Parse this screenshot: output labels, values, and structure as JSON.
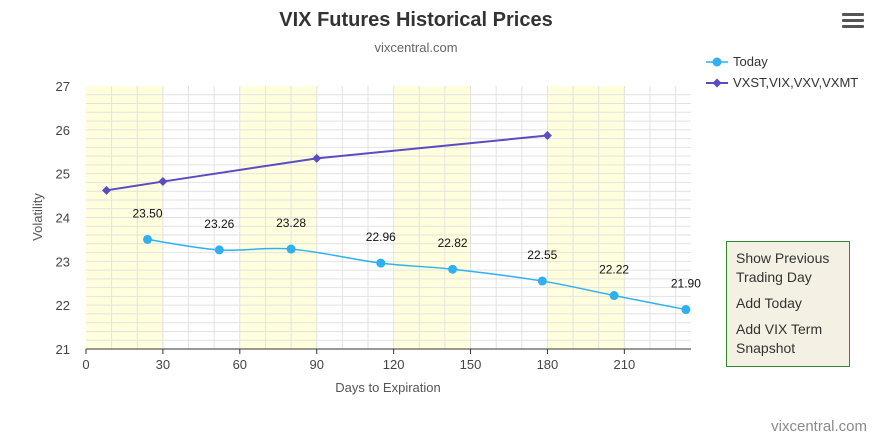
{
  "chart_data": {
    "type": "line",
    "title": "VIX Futures Historical Prices",
    "subtitle": "vixcentral.com",
    "xlabel": "Days to Expiration",
    "ylabel": "Volatility",
    "xlim": [
      0,
      236
    ],
    "ylim": [
      21,
      27
    ],
    "xticks": [
      0,
      30,
      60,
      90,
      120,
      150,
      180,
      210
    ],
    "yticks": [
      21,
      22,
      23,
      24,
      25,
      26,
      27
    ],
    "legend_position": "top-right",
    "shaded_bands": [
      [
        0,
        30
      ],
      [
        60,
        90
      ],
      [
        120,
        150
      ],
      [
        180,
        210
      ]
    ],
    "band_color": "#ffffdd",
    "series": [
      {
        "name": "Today",
        "color": "#2fb0f0",
        "marker": "circle",
        "smooth": true,
        "x": [
          24,
          52,
          80,
          115,
          143,
          178,
          206,
          234
        ],
        "y": [
          23.5,
          23.26,
          23.28,
          22.96,
          22.82,
          22.55,
          22.22,
          21.9
        ],
        "labels": [
          "23.50",
          "23.26",
          "23.28",
          "22.96",
          "22.82",
          "22.55",
          "22.22",
          "21.90"
        ]
      },
      {
        "name": "VXST,VIX,VXV,VXMT",
        "color": "#5b4cc0",
        "marker": "diamond",
        "smooth": false,
        "x": [
          8,
          30,
          90,
          180
        ],
        "y": [
          24.62,
          24.82,
          25.35,
          25.87
        ]
      }
    ]
  },
  "side_panel": {
    "links": [
      "Show Previous Trading Day",
      "Add Today",
      "Add VIX Term Snapshot"
    ]
  },
  "footer": {
    "credit": "vixcentral.com"
  }
}
